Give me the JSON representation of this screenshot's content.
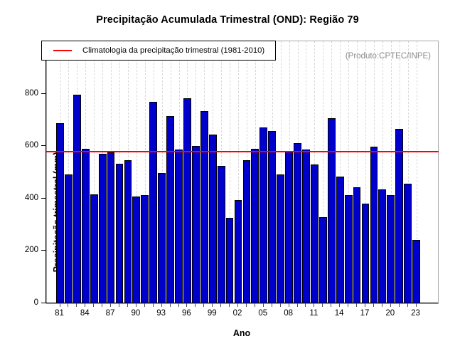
{
  "chart_data": {
    "type": "bar",
    "title": "Precipitação Acumulada Trimestral (OND): Região 79",
    "xlabel": "Ano",
    "ylabel": "Precipitação trimestral (mm)",
    "watermark": "(Produto:CPTEC/INPE)",
    "legend": {
      "position": "top-left",
      "entries": [
        {
          "label": "Climatologia da precipitação trimestral (1981-2010)",
          "color": "#FF0000",
          "type": "line"
        }
      ]
    },
    "x": [
      1981,
      1982,
      1983,
      1984,
      1985,
      1986,
      1987,
      1988,
      1989,
      1990,
      1991,
      1992,
      1993,
      1994,
      1995,
      1996,
      1997,
      1998,
      1999,
      2000,
      2001,
      2002,
      2003,
      2004,
      2005,
      2006,
      2007,
      2008,
      2009,
      2010,
      2011,
      2012,
      2013,
      2014,
      2015,
      2016,
      2017,
      2018,
      2019,
      2020,
      2021,
      2022,
      2023
    ],
    "values": [
      688,
      493,
      795,
      589,
      415,
      571,
      576,
      533,
      547,
      409,
      414,
      768,
      497,
      715,
      588,
      782,
      600,
      734,
      645,
      525,
      327,
      394,
      545,
      589,
      672,
      657,
      491,
      582,
      611,
      586,
      529,
      330,
      706,
      483,
      412,
      444,
      380,
      597,
      435,
      412,
      665,
      457,
      243
    ],
    "reference_line": {
      "name": "climatologia-1981-2010",
      "value": 578,
      "color": "#FF0000"
    },
    "ylim": [
      0,
      1000
    ],
    "yticks": [
      0,
      200,
      400,
      600,
      800
    ],
    "xtick_step": 3,
    "grid": "vertical-dashed-per-year",
    "colors": {
      "bar_fill": "#0000CD",
      "bar_border": "#000000",
      "reference_line": "#FF0000",
      "gridline": "#D9D9D9",
      "frame": "#A6A6A6",
      "watermark_text": "#8C8C8C"
    }
  }
}
